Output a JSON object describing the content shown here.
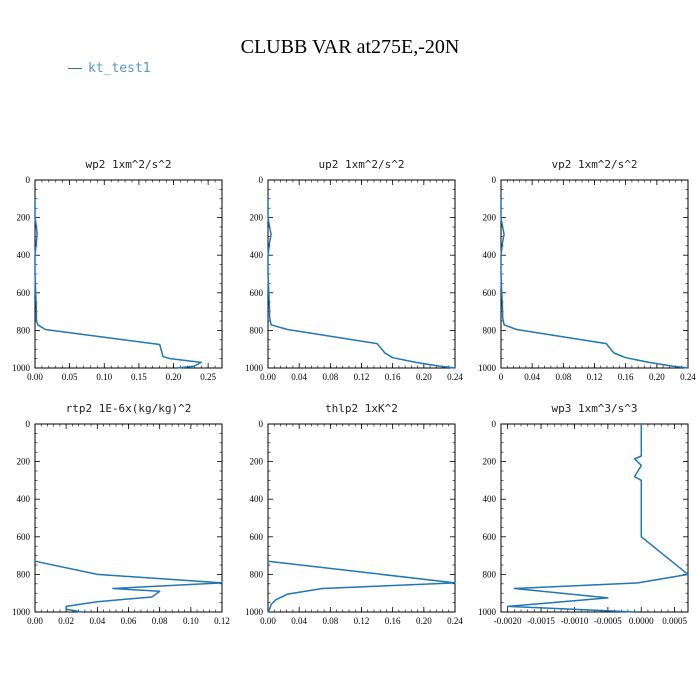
{
  "title": "CLUBB VAR at275E,-20N",
  "legend": {
    "label": "kt_test1",
    "color": "#1f77b4"
  },
  "chart_data": [
    {
      "type": "line",
      "title": "wp2  1xm^2/s^2",
      "xlim": [
        0,
        0.27
      ],
      "ylim": [
        1000,
        0
      ],
      "xticks": [
        0,
        0.05,
        0.1,
        0.15,
        0.2,
        0.25
      ],
      "xticklabels": [
        "0.00",
        "0.05",
        "0.10",
        "0.15",
        "0.20",
        "0.25"
      ],
      "yticks": [
        0,
        200,
        400,
        600,
        800,
        1000
      ],
      "yticklabels": [
        "0",
        "200",
        "400",
        "600",
        "800",
        "1000"
      ],
      "series": [
        {
          "name": "kt_test1",
          "x": [
            0.0,
            0.0,
            0.002,
            0.003,
            0.002,
            0.0,
            0.0,
            0.001,
            0.002,
            0.002,
            0.004,
            0.015,
            0.18,
            0.185,
            0.195,
            0.24,
            0.23,
            0.205
          ],
          "y": [
            100,
            200,
            250,
            290,
            330,
            400,
            500,
            600,
            700,
            750,
            770,
            795,
            875,
            940,
            950,
            970,
            990,
            1000
          ]
        }
      ]
    },
    {
      "type": "line",
      "title": "up2  1xm^2/s^2",
      "xlim": [
        0,
        0.24
      ],
      "ylim": [
        1000,
        0
      ],
      "xticks": [
        0,
        0.04,
        0.08,
        0.12,
        0.16,
        0.2,
        0.24
      ],
      "xticklabels": [
        "0.00",
        "0.04",
        "0.08",
        "0.12",
        "0.16",
        "0.20",
        "0.24"
      ],
      "yticks": [
        0,
        200,
        400,
        600,
        800,
        1000
      ],
      "yticklabels": [
        "0",
        "200",
        "400",
        "600",
        "800",
        "1000"
      ],
      "series": [
        {
          "name": "kt_test1",
          "x": [
            0.0,
            0.0,
            0.002,
            0.004,
            0.002,
            0.0,
            0.0,
            0.001,
            0.002,
            0.002,
            0.004,
            0.025,
            0.14,
            0.15,
            0.16,
            0.19,
            0.22,
            0.24
          ],
          "y": [
            100,
            200,
            250,
            290,
            330,
            400,
            500,
            600,
            700,
            730,
            770,
            795,
            870,
            920,
            945,
            970,
            990,
            1000
          ]
        }
      ]
    },
    {
      "type": "line",
      "title": "vp2  1xm^2/s^2",
      "xlim": [
        0,
        0.24
      ],
      "ylim": [
        1000,
        0
      ],
      "xticks": [
        0,
        0.04,
        0.08,
        0.12,
        0.16,
        0.2,
        0.24
      ],
      "xticklabels": [
        "0",
        "0.04",
        "0.08",
        "0.12",
        "0.16",
        "0.20",
        "0.24"
      ],
      "yticks": [
        0,
        200,
        400,
        600,
        800,
        1000
      ],
      "yticklabels": [
        "0",
        "200",
        "400",
        "600",
        "800",
        "1000"
      ],
      "series": [
        {
          "name": "kt_test1",
          "x": [
            0.0,
            0.0,
            0.002,
            0.004,
            0.002,
            0.0,
            0.0,
            0.001,
            0.002,
            0.002,
            0.004,
            0.02,
            0.135,
            0.145,
            0.16,
            0.19,
            0.22,
            0.24
          ],
          "y": [
            100,
            200,
            250,
            290,
            330,
            400,
            500,
            600,
            700,
            730,
            770,
            795,
            870,
            920,
            945,
            970,
            990,
            1000
          ]
        }
      ]
    },
    {
      "type": "line",
      "title": "rtp2  1E-6x(kg/kg)^2",
      "xlim": [
        0,
        0.12
      ],
      "ylim": [
        1000,
        0
      ],
      "xticks": [
        0,
        0.02,
        0.04,
        0.06,
        0.08,
        0.1,
        0.12
      ],
      "xticklabels": [
        "0.00",
        "0.02",
        "0.04",
        "0.06",
        "0.08",
        "0.10",
        "0.12"
      ],
      "yticks": [
        0,
        200,
        400,
        600,
        800,
        1000
      ],
      "yticklabels": [
        "0",
        "200",
        "400",
        "600",
        "800",
        "1000"
      ],
      "series": [
        {
          "name": "kt_test1",
          "x": [
            0.0,
            0.04,
            0.12,
            0.05,
            0.08,
            0.075,
            0.04,
            0.02,
            0.02,
            0.03
          ],
          "y": [
            730,
            800,
            845,
            875,
            890,
            920,
            945,
            970,
            985,
            1000
          ]
        }
      ]
    },
    {
      "type": "line",
      "title": "thlp2  1xK^2",
      "xlim": [
        0,
        0.24
      ],
      "ylim": [
        1000,
        0
      ],
      "xticks": [
        0,
        0.04,
        0.08,
        0.12,
        0.16,
        0.2,
        0.24
      ],
      "xticklabels": [
        "0.00",
        "0.04",
        "0.08",
        "0.12",
        "0.16",
        "0.20",
        "0.24"
      ],
      "yticks": [
        0,
        200,
        400,
        600,
        800,
        1000
      ],
      "yticklabels": [
        "0",
        "200",
        "400",
        "600",
        "800",
        "1000"
      ],
      "series": [
        {
          "name": "kt_test1",
          "x": [
            0.0,
            0.24,
            0.07,
            0.025,
            0.01,
            0.004,
            0.002,
            0.0
          ],
          "y": [
            730,
            845,
            875,
            905,
            935,
            960,
            985,
            1000
          ]
        }
      ]
    },
    {
      "type": "line",
      "title": "wp3  1xm^3/s^3",
      "xlim": [
        -0.0021,
        0.0007
      ],
      "ylim": [
        1000,
        0
      ],
      "xticks": [
        -0.002,
        -0.0015,
        -0.001,
        -0.0005,
        0,
        0.0005
      ],
      "xticklabels": [
        "-0.0020",
        "-0.0015",
        "-0.0010",
        "-0.0005",
        "0.0000",
        "0.0005"
      ],
      "yticks": [
        0,
        200,
        400,
        600,
        800,
        1000
      ],
      "yticklabels": [
        "0",
        "200",
        "400",
        "600",
        "800",
        "1000"
      ],
      "series": [
        {
          "name": "kt_test1",
          "x": [
            0.0,
            0.0,
            0.0,
            -0.0001,
            0.0,
            -0.0001,
            0.0,
            0.0,
            0.0,
            0.0,
            0.0007,
            -5e-05,
            -0.0019,
            -0.0005,
            -0.002,
            -0.0001
          ],
          "y": [
            0,
            100,
            170,
            185,
            220,
            280,
            300,
            400,
            500,
            600,
            800,
            845,
            875,
            925,
            970,
            1000
          ]
        }
      ]
    }
  ]
}
